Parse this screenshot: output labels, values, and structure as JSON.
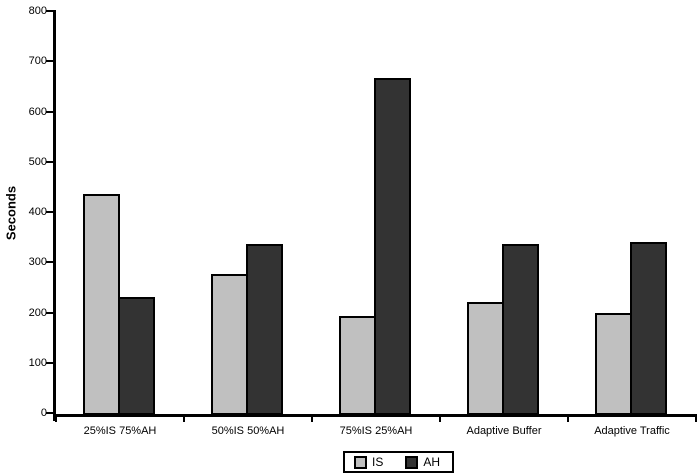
{
  "chart_data": {
    "type": "bar",
    "title": "",
    "xlabel": "",
    "ylabel": "Seconds",
    "ylim": [
      0,
      800
    ],
    "yticks": [
      0,
      100,
      200,
      300,
      400,
      500,
      600,
      700,
      800
    ],
    "grid": false,
    "legend_position": "bottom-center",
    "categories": [
      "25%IS 75%AH",
      "50%IS 50%AH",
      "75%IS 25%AH",
      "Adaptive Buffer",
      "Adaptive Traffic"
    ],
    "series": [
      {
        "name": "IS",
        "color": "#c0c0c0",
        "values": [
          440,
          280,
          198,
          225,
          202
        ]
      },
      {
        "name": "AH",
        "color": "#333333",
        "values": [
          235,
          340,
          670,
          340,
          345
        ]
      }
    ],
    "colors": {
      "axis": "#000000",
      "background": "#ffffff",
      "bar_border": "#000000"
    }
  }
}
